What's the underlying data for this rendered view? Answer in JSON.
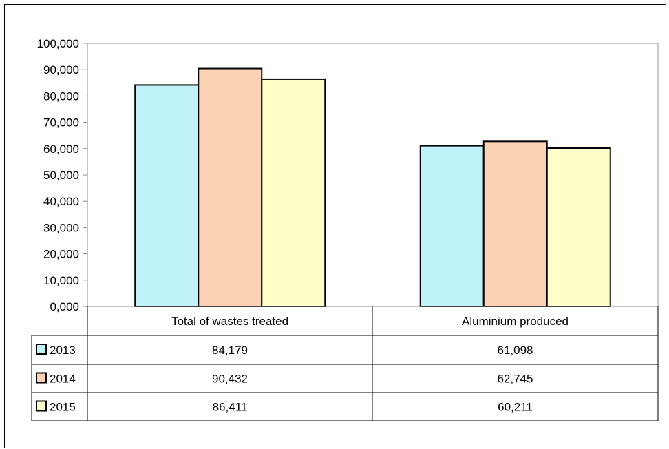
{
  "chart_data": {
    "type": "bar",
    "categories": [
      "Total of wastes treated",
      "Aluminium produced"
    ],
    "series": [
      {
        "name": "2013",
        "values": [
          84179,
          61098
        ],
        "color": "#BFF3F9",
        "display": [
          "84,179",
          "61,098"
        ]
      },
      {
        "name": "2014",
        "values": [
          90432,
          62745
        ],
        "color": "#FBD2B4",
        "display": [
          "90,432",
          "62,745"
        ]
      },
      {
        "name": "2015",
        "values": [
          86411,
          60211
        ],
        "color": "#FFFFCC",
        "display": [
          "86,411",
          "60,211"
        ]
      }
    ],
    "ylim": [
      0,
      100000
    ],
    "yticks": [
      0,
      10000,
      20000,
      30000,
      40000,
      50000,
      60000,
      70000,
      80000,
      90000,
      100000
    ],
    "ytick_labels": [
      "0,000",
      "10,000",
      "20,000",
      "30,000",
      "40,000",
      "50,000",
      "60,000",
      "70,000",
      "80,000",
      "90,000",
      "100,000"
    ],
    "grid": false,
    "legend": "data-table",
    "title": "",
    "xlabel": "",
    "ylabel": ""
  }
}
